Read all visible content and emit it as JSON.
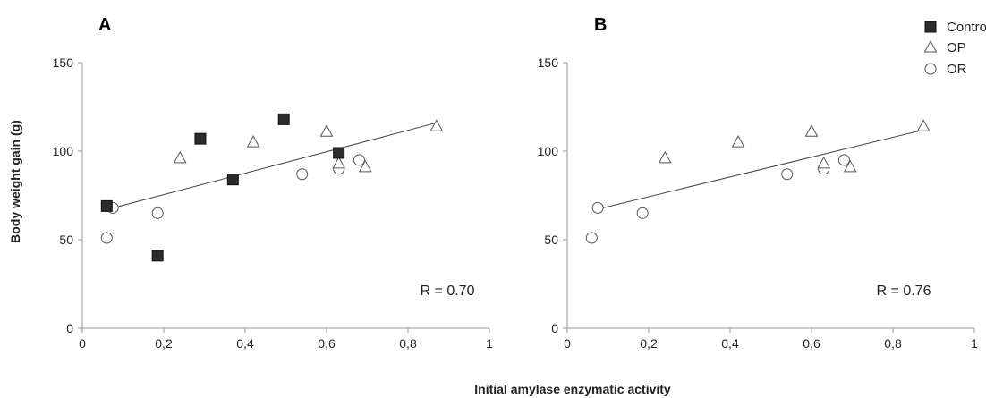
{
  "figure": {
    "ylabel": "Body weight gain (g)",
    "xlabel": "Initial amylase enzymatic activity"
  },
  "legend": {
    "items": [
      {
        "label": "Control",
        "marker": "filled-square"
      },
      {
        "label": "OP",
        "marker": "open-triangle"
      },
      {
        "label": "OR",
        "marker": "open-circle"
      }
    ]
  },
  "chart_data": [
    {
      "type": "scatter",
      "panel": "A",
      "annotation": "R = 0.70",
      "xlim": [
        0,
        1
      ],
      "ylim": [
        0,
        150
      ],
      "x_ticks": [
        "0",
        "0,2",
        "0,4",
        "0,6",
        "0,8",
        "1"
      ],
      "y_ticks": [
        "0",
        "50",
        "100",
        "150"
      ],
      "grid": false,
      "series": [
        {
          "name": "Control",
          "marker": "filled-square",
          "points": [
            [
              0.06,
              69
            ],
            [
              0.185,
              41
            ],
            [
              0.29,
              107
            ],
            [
              0.37,
              84
            ],
            [
              0.495,
              118
            ],
            [
              0.63,
              99
            ]
          ]
        },
        {
          "name": "OP",
          "marker": "open-triangle",
          "points": [
            [
              0.24,
              96
            ],
            [
              0.42,
              105
            ],
            [
              0.6,
              111
            ],
            [
              0.63,
              93
            ],
            [
              0.695,
              91
            ],
            [
              0.87,
              114
            ]
          ]
        },
        {
          "name": "OR",
          "marker": "open-circle",
          "points": [
            [
              0.06,
              51
            ],
            [
              0.075,
              68
            ],
            [
              0.185,
              65
            ],
            [
              0.54,
              87
            ],
            [
              0.63,
              90
            ],
            [
              0.68,
              95
            ]
          ]
        }
      ],
      "trendline": {
        "from": [
          0.06,
          67
        ],
        "to": [
          0.87,
          116
        ]
      }
    },
    {
      "type": "scatter",
      "panel": "B",
      "annotation": "R = 0.76",
      "xlim": [
        0,
        1
      ],
      "ylim": [
        0,
        150
      ],
      "x_ticks": [
        "0",
        "0,2",
        "0,4",
        "0,6",
        "0,8",
        "1"
      ],
      "y_ticks": [
        "0",
        "50",
        "100",
        "150"
      ],
      "grid": false,
      "series": [
        {
          "name": "OP",
          "marker": "open-triangle",
          "points": [
            [
              0.24,
              96
            ],
            [
              0.42,
              105
            ],
            [
              0.6,
              111
            ],
            [
              0.63,
              93
            ],
            [
              0.695,
              91
            ],
            [
              0.875,
              114
            ]
          ]
        },
        {
          "name": "OR",
          "marker": "open-circle",
          "points": [
            [
              0.06,
              51
            ],
            [
              0.075,
              68
            ],
            [
              0.185,
              65
            ],
            [
              0.54,
              87
            ],
            [
              0.63,
              90
            ],
            [
              0.68,
              95
            ]
          ]
        }
      ],
      "trendline": {
        "from": [
          0.07,
          67
        ],
        "to": [
          0.875,
          112
        ]
      }
    }
  ]
}
